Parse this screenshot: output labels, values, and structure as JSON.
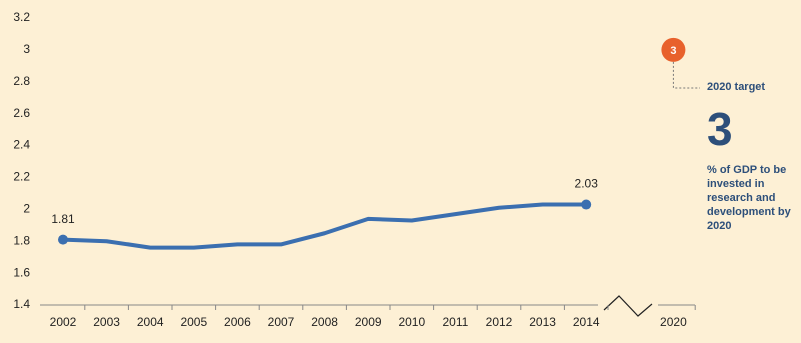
{
  "chart_data": {
    "type": "line",
    "categories": [
      "2002",
      "2003",
      "2004",
      "2005",
      "2006",
      "2007",
      "2008",
      "2009",
      "2010",
      "2011",
      "2012",
      "2013",
      "2014",
      "2020"
    ],
    "values": [
      1.81,
      1.8,
      1.76,
      1.76,
      1.78,
      1.78,
      1.85,
      1.94,
      1.93,
      1.97,
      2.01,
      2.03,
      2.03,
      null
    ],
    "labeled_points": [
      0,
      12
    ],
    "color": "#3b6fb0",
    "ylim": [
      1.4,
      3.2
    ],
    "yticks": [
      1.4,
      1.6,
      1.8,
      2,
      2.2,
      2.4,
      2.6,
      2.8,
      3,
      3.2
    ],
    "grid": false,
    "target": {
      "label": "2020 target",
      "value": 3,
      "color": "#e8612c",
      "description": "% of GDP to be invested in research and development by 2020"
    }
  }
}
